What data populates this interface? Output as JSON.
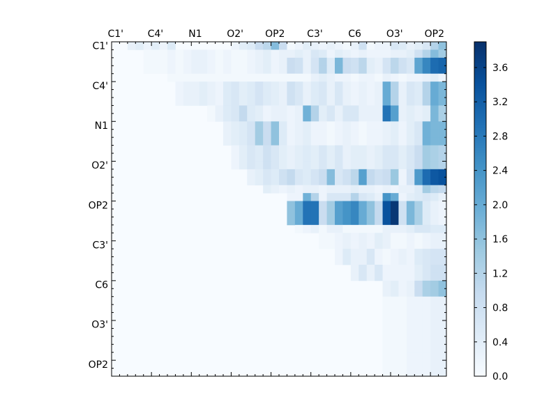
{
  "chart_data": {
    "type": "heatmap",
    "title": "",
    "xlabel": "",
    "ylabel": "",
    "x_tick_labels": [
      "C1'",
      "C4'",
      "N1",
      "O2'",
      "OP2",
      "C3'",
      "C6",
      "O3'",
      "OP2"
    ],
    "y_tick_labels": [
      "C1'",
      "C4'",
      "N1",
      "O2'",
      "OP2",
      "C3'",
      "C6",
      "O3'",
      "OP2"
    ],
    "n": 42,
    "grid": false,
    "colormap": "Blues",
    "colorbar": {
      "min": 0.0,
      "max": 3.9,
      "ticks": [
        "0.0",
        "0.4",
        "0.8",
        "1.2",
        "1.6",
        "2.0",
        "2.4",
        "2.8",
        "3.2",
        "3.6"
      ],
      "tick_values": [
        0.0,
        0.4,
        0.8,
        1.2,
        1.6,
        2.0,
        2.4,
        2.8,
        3.2,
        3.6
      ],
      "placement": "right"
    },
    "blocks": [
      {
        "rows": [
          0,
          0
        ],
        "cols": [
          2,
          7
        ],
        "values": [
          0.3,
          0.4,
          0.2,
          0.4,
          0.2,
          0.5
        ]
      },
      {
        "rows": [
          0,
          0
        ],
        "cols": [
          15,
          21
        ],
        "values": [
          0.2,
          0.4,
          0.5,
          0.9,
          1.1,
          1.7,
          0.9
        ]
      },
      {
        "rows": [
          0,
          0
        ],
        "cols": [
          22,
          41
        ],
        "values": [
          0.1,
          0.2,
          0.4,
          0.3,
          0.2,
          0.3,
          0.2,
          0.1,
          0.3,
          0.8,
          0.1,
          0.2,
          0.2,
          0.6,
          0.5,
          0.3,
          0.4,
          0.6,
          1.2,
          1.6
        ]
      },
      {
        "rows": [
          1,
          1
        ],
        "cols": [
          22,
          41
        ],
        "values": [
          0.3,
          0.4,
          0.3,
          0.6,
          0.5,
          0.2,
          0.4,
          0.3,
          0.2,
          0.3,
          0.2,
          0.2,
          0.2,
          0.3,
          0.3,
          0.4,
          0.8,
          1.2,
          1.7,
          1.4
        ]
      },
      {
        "rows": [
          2,
          3
        ],
        "cols": [
          22,
          41
        ],
        "values": [
          0.9,
          0.8,
          0.3,
          0.7,
          1.2,
          0.5,
          1.8,
          0.9,
          0.8,
          1.1,
          0.4,
          0.3,
          0.7,
          1.1,
          0.8,
          0.6,
          2.1,
          2.6,
          3.0,
          3.1
        ]
      },
      {
        "rows": [
          1,
          3
        ],
        "cols": [
          4,
          21
        ],
        "values": [
          0.1,
          0.1,
          0.1,
          0.2,
          0.1,
          0.2,
          0.3,
          0.3,
          0.2,
          0.1,
          0.2,
          0.1,
          0.1,
          0.2,
          0.3,
          0.4,
          0.2,
          0.3
        ]
      },
      {
        "rows": [
          4,
          4
        ],
        "cols": [
          7,
          41
        ],
        "values": [
          0.1,
          0.1,
          0.1,
          0.1,
          0.1,
          0.1,
          0.1,
          0.1,
          0.1,
          0.1,
          0.1,
          0.1,
          0.1,
          0.1,
          0.1,
          0.1,
          0.1,
          0.1,
          0.3,
          0.4,
          0.3,
          0.2,
          0.2,
          0.1,
          0.2,
          0.2,
          0.1,
          0.3,
          0.2,
          0.1,
          0.2,
          0.2,
          0.3,
          0.4,
          0.2
        ]
      },
      {
        "rows": [
          5,
          7
        ],
        "cols": [
          8,
          21
        ],
        "values": [
          0.2,
          0.3,
          0.3,
          0.4,
          0.3,
          0.2,
          0.5,
          0.6,
          0.4,
          0.5,
          0.7,
          0.5,
          0.4,
          0.3
        ]
      },
      {
        "rows": [
          5,
          7
        ],
        "cols": [
          22,
          41
        ],
        "values": [
          0.8,
          0.6,
          0.3,
          0.5,
          0.6,
          0.3,
          0.6,
          0.3,
          0.2,
          0.3,
          0.2,
          0.3,
          2.0,
          1.2,
          0.3,
          0.6,
          0.5,
          1.2,
          2.0,
          1.8
        ]
      },
      {
        "rows": [
          8,
          9
        ],
        "cols": [
          12,
          21
        ],
        "values": [
          0.1,
          0.3,
          0.5,
          0.6,
          1.0,
          0.5,
          0.4,
          0.2,
          0.3,
          0.3
        ]
      },
      {
        "rows": [
          8,
          9
        ],
        "cols": [
          22,
          41
        ],
        "values": [
          0.2,
          0.3,
          1.9,
          1.2,
          0.4,
          0.6,
          0.3,
          0.6,
          0.6,
          0.3,
          0.3,
          0.3,
          2.9,
          2.2,
          0.3,
          0.4,
          0.3,
          0.4,
          1.8,
          1.3
        ]
      },
      {
        "rows": [
          10,
          12
        ],
        "cols": [
          14,
          21
        ],
        "values": [
          0.3,
          0.4,
          0.5,
          0.7,
          1.4,
          0.9,
          1.6,
          0.5
        ]
      },
      {
        "rows": [
          10,
          12
        ],
        "cols": [
          22,
          41
        ],
        "values": [
          0.2,
          0.3,
          0.4,
          0.2,
          0.2,
          0.1,
          0.2,
          0.3,
          0.2,
          0.1,
          0.2,
          0.2,
          0.3,
          0.4,
          0.2,
          0.4,
          0.6,
          1.9,
          1.8,
          1.8
        ]
      },
      {
        "rows": [
          13,
          15
        ],
        "cols": [
          15,
          21
        ],
        "values": [
          0.2,
          0.4,
          0.6,
          0.5,
          0.8,
          0.6,
          0.4
        ]
      },
      {
        "rows": [
          13,
          15
        ],
        "cols": [
          22,
          41
        ],
        "values": [
          0.3,
          0.4,
          0.5,
          0.4,
          0.6,
          0.4,
          0.6,
          0.3,
          0.4,
          0.4,
          0.3,
          0.4,
          0.6,
          0.6,
          0.4,
          0.6,
          0.9,
          1.4,
          1.3,
          1.2
        ]
      },
      {
        "rows": [
          16,
          17
        ],
        "cols": [
          17,
          21
        ],
        "values": [
          0.3,
          0.4,
          0.6,
          0.5,
          0.8
        ]
      },
      {
        "rows": [
          16,
          17
        ],
        "cols": [
          22,
          41
        ],
        "values": [
          1.0,
          0.6,
          0.5,
          0.7,
          0.9,
          1.7,
          0.6,
          0.8,
          1.1,
          2.2,
          1.0,
          0.8,
          0.9,
          1.5,
          0.2,
          0.7,
          2.3,
          3.0,
          3.3,
          3.4
        ]
      },
      {
        "rows": [
          18,
          18
        ],
        "cols": [
          19,
          21
        ],
        "values": [
          0.4,
          0.3,
          0.2
        ]
      },
      {
        "rows": [
          18,
          18
        ],
        "cols": [
          22,
          41
        ],
        "values": [
          0.3,
          0.2,
          0.3,
          0.3,
          0.2,
          0.3,
          0.3,
          0.3,
          0.4,
          0.3,
          0.3,
          0.2,
          0.3,
          0.2,
          0.3,
          0.3,
          0.5,
          1.4,
          1.1,
          1.0
        ]
      },
      {
        "rows": [
          19,
          19
        ],
        "cols": [
          22,
          41
        ],
        "values": [
          0.2,
          0.2,
          1.9,
          1.2,
          0.2,
          0.6,
          0.6,
          0.6,
          1.2,
          0.6,
          0.5,
          0.3,
          2.4,
          2.0,
          0.2,
          0.4,
          0.5,
          0.6,
          0.5,
          0.3
        ]
      },
      {
        "rows": [
          20,
          22
        ],
        "cols": [
          22,
          41
        ],
        "values": [
          1.6,
          2.0,
          2.9,
          2.9,
          0.9,
          1.4,
          2.2,
          2.4,
          2.6,
          2.0,
          1.6,
          1.0,
          3.4,
          3.8,
          0.8,
          1.8,
          1.3,
          0.5,
          0.3,
          0.2
        ]
      },
      {
        "rows": [
          23,
          23
        ],
        "cols": [
          23,
          41
        ],
        "values": [
          0.1,
          0.2,
          0.3,
          0.1,
          0.3,
          0.3,
          0.1,
          0.1,
          0.1,
          0.1,
          0.1,
          0.3,
          0.3,
          0.3,
          0.4,
          0.6,
          0.6,
          0.5,
          0.5
        ]
      },
      {
        "rows": [
          24,
          25
        ],
        "cols": [
          26,
          41
        ],
        "values": [
          0.1,
          0.1,
          0.2,
          0.3,
          0.2,
          0.3,
          0.2,
          0.4,
          0.3,
          0.1,
          0.1,
          0.2,
          0.1,
          0.2,
          0.3,
          0.3
        ]
      },
      {
        "rows": [
          26,
          27
        ],
        "cols": [
          28,
          41
        ],
        "values": [
          0.2,
          0.5,
          0.3,
          0.3,
          0.6,
          0.2,
          0.1,
          0.2,
          0.3,
          0.2,
          0.5,
          0.6,
          0.7,
          0.7
        ]
      },
      {
        "rows": [
          28,
          29
        ],
        "cols": [
          30,
          41
        ],
        "values": [
          0.3,
          0.6,
          0.3,
          0.6,
          0.2,
          0.2,
          0.2,
          0.2,
          0.4,
          0.6,
          0.8,
          0.8
        ]
      },
      {
        "rows": [
          30,
          31
        ],
        "cols": [
          34,
          41
        ],
        "values": [
          0.3,
          0.4,
          0.2,
          0.3,
          0.9,
          1.3,
          1.4,
          1.6
        ]
      },
      {
        "rows": [
          32,
          41
        ],
        "cols": [
          34,
          41
        ],
        "values": [
          0.1,
          0.1,
          0.1,
          0.2,
          0.2,
          0.2,
          0.3,
          0.3
        ]
      }
    ]
  }
}
